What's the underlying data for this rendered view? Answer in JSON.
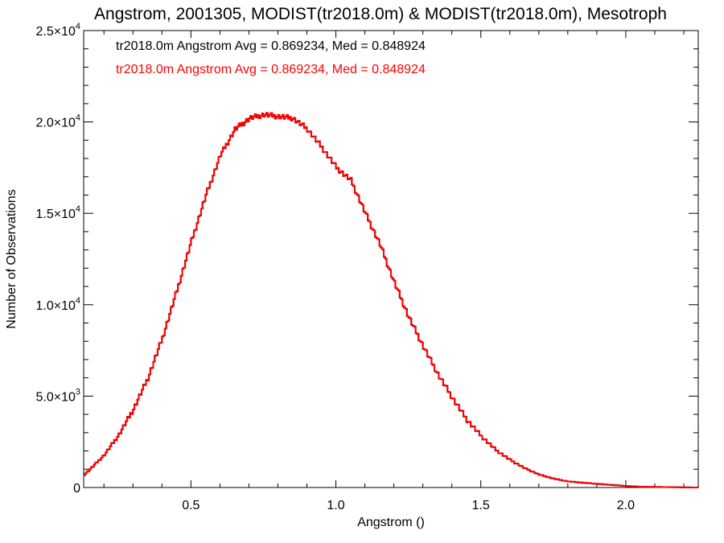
{
  "chart_data": {
    "type": "line",
    "title": "Angstrom, 2001305, MODIST(tr2018.0m) & MODIST(tr2018.0m), Mesotroph",
    "xlabel": "Angstrom ()",
    "ylabel": "Number of Observations",
    "xlim": [
      0.13,
      2.25
    ],
    "ylim": [
      0,
      25000
    ],
    "x_ticks": [
      {
        "value": 0.5,
        "label": "0.5"
      },
      {
        "value": 1.0,
        "label": "1.0"
      },
      {
        "value": 1.5,
        "label": "1.5"
      },
      {
        "value": 2.0,
        "label": "2.0"
      }
    ],
    "y_ticks": [
      {
        "value": 0,
        "mantissa": "0",
        "exp": ""
      },
      {
        "value": 5000,
        "mantissa": "5.0×10",
        "exp": "3"
      },
      {
        "value": 10000,
        "mantissa": "1.0×10",
        "exp": "4"
      },
      {
        "value": 15000,
        "mantissa": "1.5×10",
        "exp": "4"
      },
      {
        "value": 20000,
        "mantissa": "2.0×10",
        "exp": "4"
      },
      {
        "value": 25000,
        "mantissa": "2.5×10",
        "exp": "4"
      }
    ],
    "grid": false,
    "legend_position": "top-left",
    "series": [
      {
        "name": "tr2018.0m Angstrom Avg = 0.869234, Med = 0.848924",
        "color": "#000000",
        "x": [
          0.13,
          0.15,
          0.2,
          0.25,
          0.3,
          0.35,
          0.4,
          0.45,
          0.5,
          0.55,
          0.6,
          0.65,
          0.7,
          0.75,
          0.8,
          0.85,
          0.9,
          0.95,
          1.0,
          1.05,
          1.1,
          1.15,
          1.2,
          1.25,
          1.3,
          1.35,
          1.4,
          1.45,
          1.5,
          1.55,
          1.6,
          1.65,
          1.7,
          1.75,
          1.8,
          1.85,
          1.9,
          1.95,
          2.0,
          2.05,
          2.1,
          2.15,
          2.2,
          2.25
        ],
        "y": [
          700,
          1000,
          1800,
          2900,
          4300,
          6000,
          8200,
          10800,
          13500,
          16000,
          18200,
          19600,
          20200,
          20400,
          20300,
          20200,
          19600,
          18600,
          17500,
          16800,
          15000,
          13300,
          11200,
          9300,
          7700,
          6200,
          4900,
          3700,
          2800,
          2050,
          1500,
          1050,
          700,
          480,
          330,
          260,
          200,
          140,
          80,
          40,
          30,
          20,
          5,
          0
        ]
      },
      {
        "name": "tr2018.0m Angstrom Avg = 0.869234, Med = 0.848924",
        "color": "#ff0000",
        "x": [
          0.13,
          0.15,
          0.2,
          0.25,
          0.3,
          0.35,
          0.4,
          0.45,
          0.5,
          0.55,
          0.6,
          0.65,
          0.7,
          0.75,
          0.8,
          0.85,
          0.9,
          0.95,
          1.0,
          1.05,
          1.1,
          1.15,
          1.2,
          1.25,
          1.3,
          1.35,
          1.4,
          1.45,
          1.5,
          1.55,
          1.6,
          1.65,
          1.7,
          1.75,
          1.8,
          1.85,
          1.9,
          1.95,
          2.0,
          2.05,
          2.1,
          2.15,
          2.2,
          2.25
        ],
        "y": [
          700,
          1000,
          1800,
          2900,
          4300,
          6000,
          8200,
          10800,
          13500,
          16000,
          18200,
          19600,
          20200,
          20400,
          20300,
          20200,
          19600,
          18600,
          17500,
          16800,
          15000,
          13300,
          11200,
          9300,
          7700,
          6200,
          4900,
          3700,
          2800,
          2050,
          1500,
          1050,
          700,
          480,
          330,
          260,
          200,
          140,
          80,
          40,
          30,
          20,
          5,
          0
        ]
      }
    ]
  }
}
